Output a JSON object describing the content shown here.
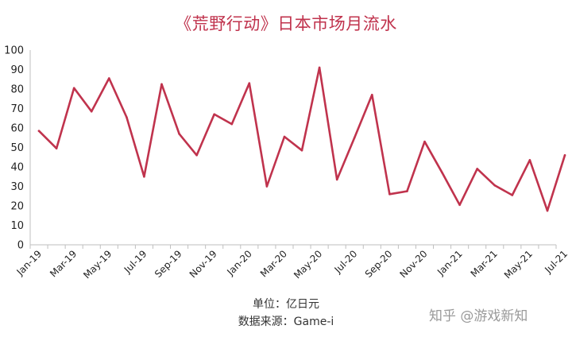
{
  "chart_data": {
    "type": "line",
    "title": "《荒野行动》日本市场月流水",
    "xlabel": "",
    "ylabel": "",
    "ylim": [
      0,
      100
    ],
    "yticks": [
      0,
      10,
      20,
      30,
      40,
      50,
      60,
      70,
      80,
      90,
      100
    ],
    "x": [
      "Jan-19",
      "Feb-19",
      "Mar-19",
      "Apr-19",
      "May-19",
      "Jun-19",
      "Jul-19",
      "Aug-19",
      "Sep-19",
      "Oct-19",
      "Nov-19",
      "Dec-19",
      "Jan-20",
      "Feb-20",
      "Mar-20",
      "Apr-20",
      "May-20",
      "Jun-20",
      "Jul-20",
      "Aug-20",
      "Sep-20",
      "Oct-20",
      "Nov-20",
      "Dec-20",
      "Jan-21",
      "Feb-21",
      "Mar-21",
      "Apr-21",
      "May-21",
      "Jun-21",
      "Jul-21"
    ],
    "xtick_labels": [
      "Jan-19",
      "Mar-19",
      "May-19",
      "Jul-19",
      "Sep-19",
      "Nov-19",
      "Jan-20",
      "Mar-20",
      "May-20",
      "Jul-20",
      "Sep-20",
      "Nov-20",
      "Jan-21",
      "Mar-21",
      "May-21",
      "Jul-21"
    ],
    "series": [
      {
        "values": [
          58.5,
          49.5,
          80.5,
          68.5,
          85.5,
          65.5,
          35,
          82.5,
          57,
          46,
          67,
          62,
          83,
          30,
          55.5,
          48.5,
          91,
          33.5,
          55,
          77,
          26,
          27.5,
          53,
          37,
          20.5,
          39,
          30.5,
          25.5,
          43.5,
          17.5,
          46
        ]
      }
    ],
    "grid": false,
    "line_color": "#c0334d"
  },
  "footnote": {
    "unit": "单位：亿日元",
    "source": "数据来源：Game-i"
  },
  "watermark": "知乎 @游戏新知"
}
